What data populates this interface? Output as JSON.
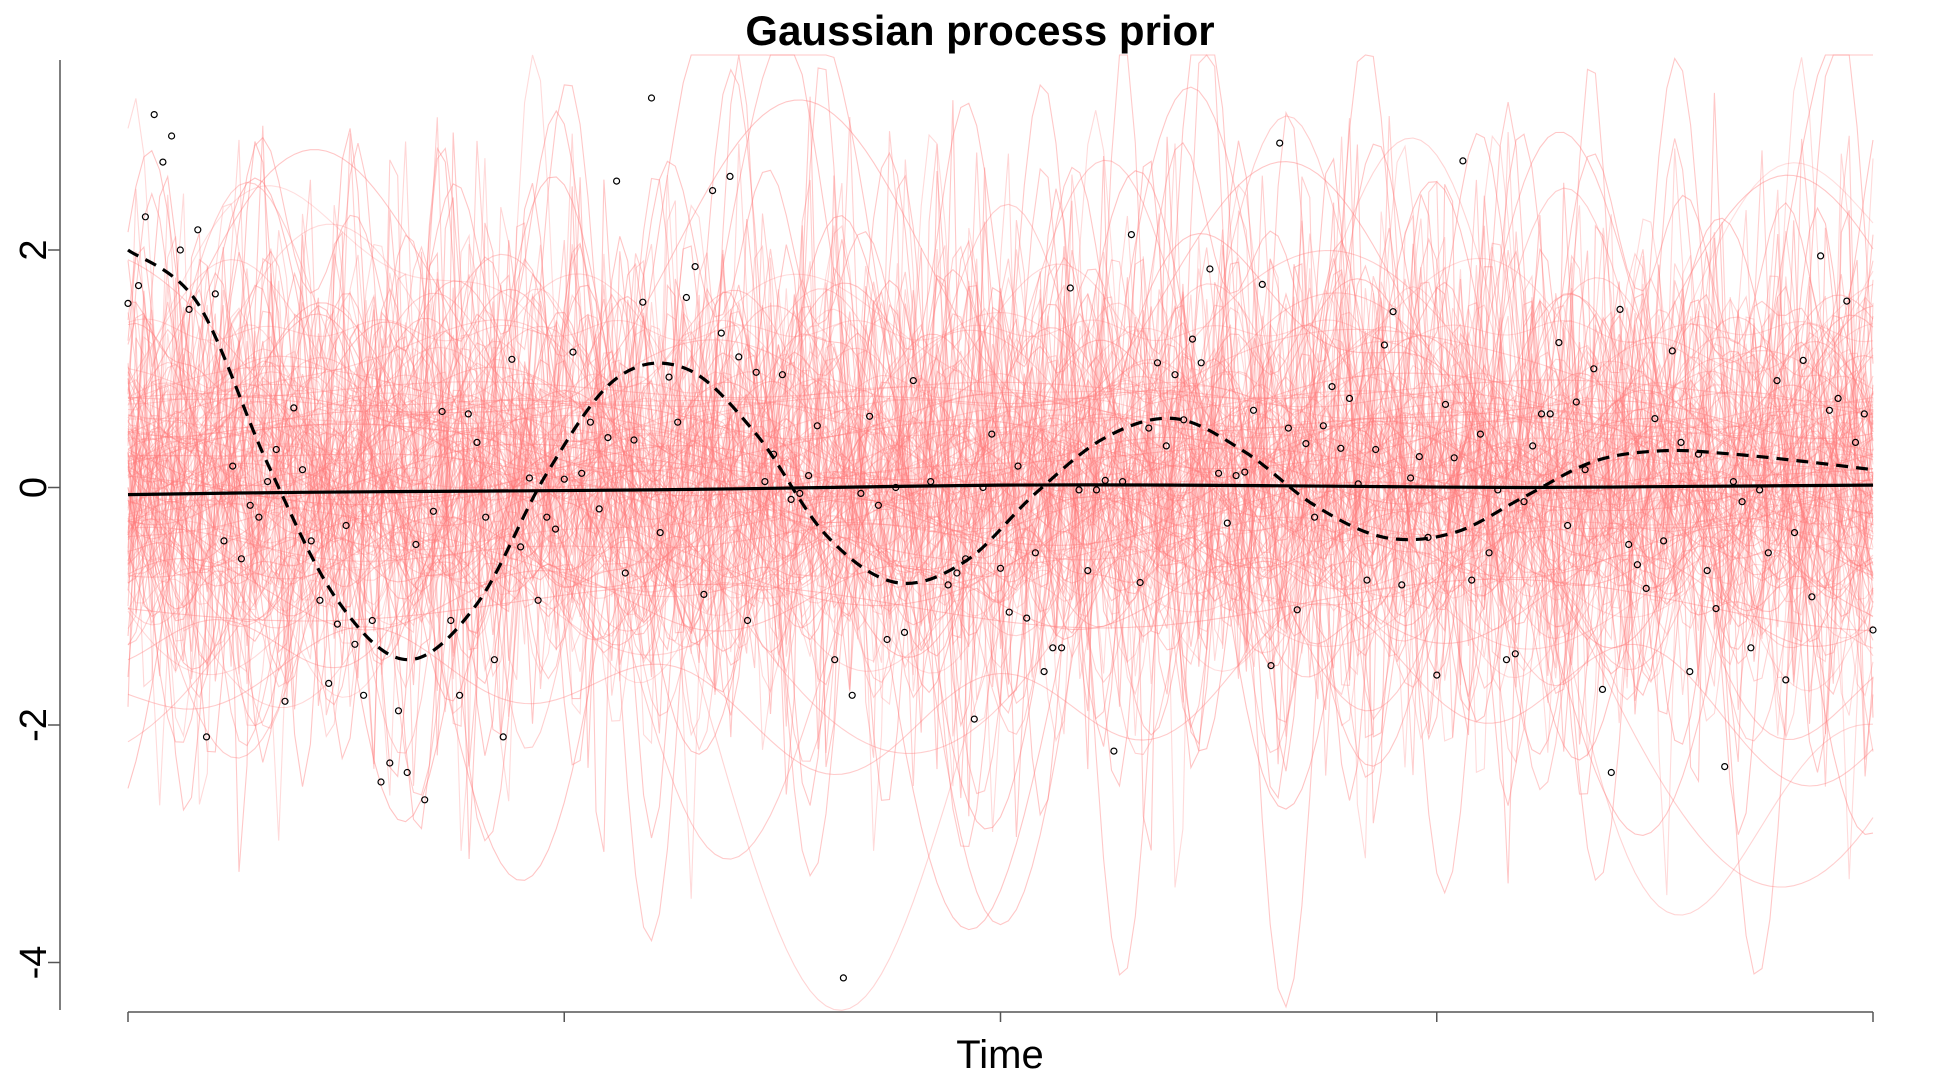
{
  "chart_data": {
    "type": "line",
    "title": "Gaussian process prior",
    "xlabel": "Time",
    "ylabel": "",
    "xlim": [
      0,
      1
    ],
    "ylim": [
      -4.4,
      3.6
    ],
    "y_ticks": [
      {
        "value": -4,
        "label": "-4"
      },
      {
        "value": -2,
        "label": "-2"
      },
      {
        "value": 0,
        "label": "0"
      },
      {
        "value": 2,
        "label": "2"
      }
    ],
    "x_ticks": [
      0,
      0.25,
      0.5,
      0.75,
      1
    ],
    "x_tick_labels_shown": false,
    "grid": false,
    "legend": "none",
    "colors": {
      "prior_draws": "#ff7a7a",
      "mean": "#000000",
      "true_function": "#000000",
      "points": "#000000"
    },
    "series": [
      {
        "style": "solid",
        "x": [
          0,
          0.1,
          0.2,
          0.3,
          0.4,
          0.5,
          0.6,
          0.7,
          0.8,
          0.9,
          1.0
        ],
        "values": [
          -0.06,
          -0.04,
          -0.03,
          -0.02,
          0.0,
          0.02,
          0.02,
          0.01,
          0.0,
          0.01,
          0.02
        ]
      },
      {
        "style": "dashed",
        "x": [
          0,
          0.04,
          0.08,
          0.12,
          0.16,
          0.2,
          0.24,
          0.28,
          0.32,
          0.36,
          0.4,
          0.44,
          0.48,
          0.52,
          0.56,
          0.6,
          0.64,
          0.68,
          0.72,
          0.76,
          0.8,
          0.84,
          0.88,
          0.92,
          0.96,
          1.0
        ],
        "values": [
          2.0,
          1.55,
          0.2,
          -0.95,
          -1.45,
          -0.98,
          0.12,
          0.92,
          1.0,
          0.45,
          -0.4,
          -0.8,
          -0.62,
          -0.05,
          0.42,
          0.58,
          0.3,
          -0.15,
          -0.42,
          -0.38,
          -0.08,
          0.22,
          0.31,
          0.28,
          0.22,
          0.15
        ]
      }
    ],
    "points": [
      [
        0.0,
        1.55
      ],
      [
        0.006,
        1.7
      ],
      [
        0.01,
        2.28
      ],
      [
        0.015,
        3.14
      ],
      [
        0.02,
        2.74
      ],
      [
        0.025,
        2.96
      ],
      [
        0.03,
        2.0
      ],
      [
        0.035,
        1.5
      ],
      [
        0.04,
        2.17
      ],
      [
        0.045,
        -2.1
      ],
      [
        0.05,
        1.63
      ],
      [
        0.055,
        -0.45
      ],
      [
        0.06,
        0.18
      ],
      [
        0.065,
        -0.6
      ],
      [
        0.07,
        -0.15
      ],
      [
        0.075,
        -0.25
      ],
      [
        0.08,
        0.05
      ],
      [
        0.085,
        0.32
      ],
      [
        0.09,
        -1.8
      ],
      [
        0.095,
        0.67
      ],
      [
        0.1,
        0.15
      ],
      [
        0.105,
        -0.45
      ],
      [
        0.11,
        -0.95
      ],
      [
        0.115,
        -1.65
      ],
      [
        0.12,
        -1.15
      ],
      [
        0.125,
        -0.32
      ],
      [
        0.13,
        -1.32
      ],
      [
        0.135,
        -1.75
      ],
      [
        0.14,
        -1.12
      ],
      [
        0.145,
        -2.48
      ],
      [
        0.15,
        -2.32
      ],
      [
        0.155,
        -1.88
      ],
      [
        0.16,
        -2.4
      ],
      [
        0.165,
        -0.48
      ],
      [
        0.17,
        -2.63
      ],
      [
        0.175,
        -0.2
      ],
      [
        0.18,
        0.64
      ],
      [
        0.185,
        -1.12
      ],
      [
        0.19,
        -1.75
      ],
      [
        0.195,
        0.62
      ],
      [
        0.2,
        0.38
      ],
      [
        0.205,
        -0.25
      ],
      [
        0.21,
        -1.45
      ],
      [
        0.215,
        -2.1
      ],
      [
        0.22,
        1.08
      ],
      [
        0.225,
        -0.5
      ],
      [
        0.23,
        0.08
      ],
      [
        0.235,
        -0.95
      ],
      [
        0.24,
        -0.25
      ],
      [
        0.245,
        -0.35
      ],
      [
        0.25,
        0.07
      ],
      [
        0.255,
        1.14
      ],
      [
        0.26,
        0.12
      ],
      [
        0.265,
        0.55
      ],
      [
        0.27,
        -0.18
      ],
      [
        0.275,
        0.42
      ],
      [
        0.28,
        2.58
      ],
      [
        0.285,
        -0.72
      ],
      [
        0.29,
        0.4
      ],
      [
        0.295,
        1.56
      ],
      [
        0.3,
        3.28
      ],
      [
        0.305,
        -0.38
      ],
      [
        0.31,
        0.93
      ],
      [
        0.315,
        0.55
      ],
      [
        0.32,
        1.6
      ],
      [
        0.325,
        1.86
      ],
      [
        0.33,
        -0.9
      ],
      [
        0.335,
        2.5
      ],
      [
        0.34,
        1.3
      ],
      [
        0.345,
        2.62
      ],
      [
        0.35,
        1.1
      ],
      [
        0.355,
        -1.12
      ],
      [
        0.36,
        0.97
      ],
      [
        0.365,
        0.05
      ],
      [
        0.37,
        0.28
      ],
      [
        0.375,
        0.95
      ],
      [
        0.38,
        -0.1
      ],
      [
        0.385,
        -0.05
      ],
      [
        0.39,
        0.1
      ],
      [
        0.395,
        0.52
      ],
      [
        0.405,
        -1.45
      ],
      [
        0.41,
        -4.13
      ],
      [
        0.415,
        -1.75
      ],
      [
        0.42,
        -0.05
      ],
      [
        0.425,
        0.6
      ],
      [
        0.43,
        -0.15
      ],
      [
        0.435,
        -1.28
      ],
      [
        0.44,
        0.0
      ],
      [
        0.445,
        -1.22
      ],
      [
        0.45,
        0.9
      ],
      [
        0.46,
        0.05
      ],
      [
        0.47,
        -0.82
      ],
      [
        0.475,
        -0.72
      ],
      [
        0.48,
        -0.6
      ],
      [
        0.485,
        -1.95
      ],
      [
        0.49,
        0.0
      ],
      [
        0.495,
        0.45
      ],
      [
        0.5,
        -0.68
      ],
      [
        0.505,
        -1.05
      ],
      [
        0.51,
        0.18
      ],
      [
        0.515,
        -1.1
      ],
      [
        0.52,
        -0.55
      ],
      [
        0.525,
        -1.55
      ],
      [
        0.53,
        -1.35
      ],
      [
        0.535,
        -1.35
      ],
      [
        0.54,
        1.68
      ],
      [
        0.545,
        -0.02
      ],
      [
        0.55,
        -0.7
      ],
      [
        0.555,
        -0.02
      ],
      [
        0.56,
        0.06
      ],
      [
        0.565,
        -2.22
      ],
      [
        0.57,
        0.05
      ],
      [
        0.575,
        2.13
      ],
      [
        0.58,
        -0.8
      ],
      [
        0.585,
        0.5
      ],
      [
        0.59,
        1.05
      ],
      [
        0.595,
        0.35
      ],
      [
        0.6,
        0.95
      ],
      [
        0.605,
        0.57
      ],
      [
        0.61,
        1.25
      ],
      [
        0.615,
        1.05
      ],
      [
        0.62,
        1.84
      ],
      [
        0.625,
        0.12
      ],
      [
        0.63,
        -0.3
      ],
      [
        0.635,
        0.1
      ],
      [
        0.64,
        0.13
      ],
      [
        0.645,
        0.65
      ],
      [
        0.65,
        1.71
      ],
      [
        0.655,
        -1.5
      ],
      [
        0.66,
        2.9
      ],
      [
        0.665,
        0.5
      ],
      [
        0.67,
        -1.03
      ],
      [
        0.675,
        0.37
      ],
      [
        0.68,
        -0.25
      ],
      [
        0.685,
        0.52
      ],
      [
        0.69,
        0.85
      ],
      [
        0.695,
        0.33
      ],
      [
        0.7,
        0.75
      ],
      [
        0.705,
        0.03
      ],
      [
        0.71,
        -0.78
      ],
      [
        0.715,
        0.32
      ],
      [
        0.72,
        1.2
      ],
      [
        0.725,
        1.48
      ],
      [
        0.73,
        -0.82
      ],
      [
        0.735,
        0.08
      ],
      [
        0.74,
        0.26
      ],
      [
        0.745,
        -0.42
      ],
      [
        0.75,
        -1.58
      ],
      [
        0.755,
        0.7
      ],
      [
        0.76,
        0.25
      ],
      [
        0.765,
        2.75
      ],
      [
        0.77,
        -0.78
      ],
      [
        0.775,
        0.45
      ],
      [
        0.78,
        -0.55
      ],
      [
        0.785,
        -0.02
      ],
      [
        0.79,
        -1.45
      ],
      [
        0.795,
        -1.4
      ],
      [
        0.8,
        -0.12
      ],
      [
        0.805,
        0.35
      ],
      [
        0.81,
        0.62
      ],
      [
        0.815,
        0.62
      ],
      [
        0.82,
        1.22
      ],
      [
        0.825,
        -0.32
      ],
      [
        0.83,
        0.72
      ],
      [
        0.835,
        0.15
      ],
      [
        0.84,
        1.0
      ],
      [
        0.845,
        -1.7
      ],
      [
        0.85,
        -2.4
      ],
      [
        0.855,
        1.5
      ],
      [
        0.86,
        -0.48
      ],
      [
        0.865,
        -0.65
      ],
      [
        0.87,
        -0.85
      ],
      [
        0.875,
        0.58
      ],
      [
        0.88,
        -0.45
      ],
      [
        0.885,
        1.15
      ],
      [
        0.89,
        0.38
      ],
      [
        0.895,
        -1.55
      ],
      [
        0.9,
        0.28
      ],
      [
        0.905,
        -0.7
      ],
      [
        0.91,
        -1.02
      ],
      [
        0.915,
        -2.35
      ],
      [
        0.92,
        0.05
      ],
      [
        0.925,
        -0.12
      ],
      [
        0.93,
        -1.35
      ],
      [
        0.935,
        -0.02
      ],
      [
        0.94,
        -0.55
      ],
      [
        0.945,
        0.9
      ],
      [
        0.95,
        -1.62
      ],
      [
        0.955,
        -0.38
      ],
      [
        0.96,
        1.07
      ],
      [
        0.965,
        -0.92
      ],
      [
        0.97,
        1.95
      ],
      [
        0.975,
        0.65
      ],
      [
        0.98,
        0.75
      ],
      [
        0.985,
        1.57
      ],
      [
        0.99,
        0.38
      ],
      [
        0.995,
        0.62
      ],
      [
        1.0,
        -1.2
      ]
    ]
  }
}
